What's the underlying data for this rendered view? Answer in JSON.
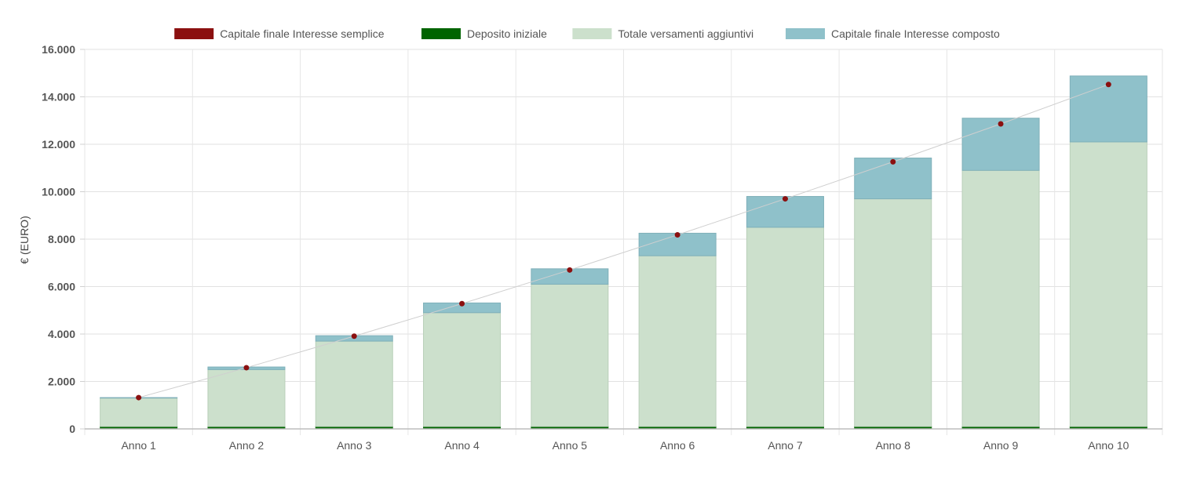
{
  "chart_data": {
    "type": "bar",
    "title": "",
    "xlabel": "",
    "ylabel": "€ (EURO)",
    "ylim": [
      0,
      16000
    ],
    "yticks": [
      0,
      2000,
      4000,
      6000,
      8000,
      10000,
      12000,
      14000,
      16000
    ],
    "ytick_labels": [
      "0",
      "2.000",
      "4.000",
      "6.000",
      "8.000",
      "10.000",
      "12.000",
      "14.000",
      "16.000"
    ],
    "grid": true,
    "legend_position": "top",
    "stacked": true,
    "categories": [
      "Anno 1",
      "Anno 2",
      "Anno 3",
      "Anno 4",
      "Anno 5",
      "Anno 6",
      "Anno 7",
      "Anno 8",
      "Anno 9",
      "Anno 10"
    ],
    "series": [
      {
        "name": "Capitale finale Interesse semplice",
        "kind": "line",
        "color": "#8b1010",
        "values": [
          1320,
          2580,
          3910,
          5280,
          6700,
          8180,
          9700,
          11260,
          12860,
          14520
        ]
      },
      {
        "name": "Deposito iniziale",
        "kind": "bar",
        "color": "#006400",
        "values": [
          100,
          100,
          100,
          100,
          100,
          100,
          100,
          100,
          100,
          100
        ]
      },
      {
        "name": "Totale versamenti aggiuntivi",
        "kind": "bar",
        "color": "#cce0cc",
        "values": [
          1200,
          2400,
          3600,
          4800,
          6000,
          7200,
          8400,
          9600,
          10800,
          12000
        ]
      },
      {
        "name": "Capitale finale Interesse composto",
        "kind": "bar",
        "color": "#8fc1ca",
        "values": [
          20,
          110,
          230,
          410,
          650,
          950,
          1300,
          1720,
          2200,
          2780
        ]
      }
    ]
  }
}
